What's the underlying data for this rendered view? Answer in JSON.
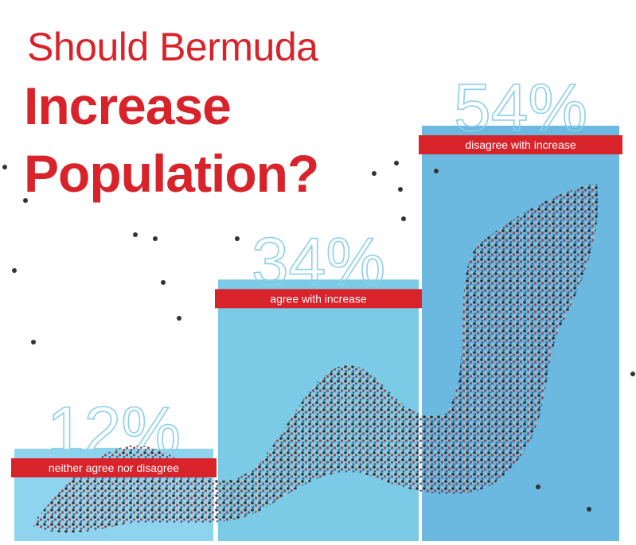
{
  "title": {
    "line1": "Should Bermuda",
    "line2": "Increase",
    "line3": "Population?"
  },
  "colors": {
    "title": "#d8232a",
    "band": "#d8232a",
    "bar_light": "#8fd4ee",
    "bar_mid": "#7ccbe6",
    "bar_dark": "#6bb9e0",
    "percent_text": "#8ccfe8"
  },
  "chart_data": {
    "type": "bar",
    "title": "Should Bermuda Increase Population?",
    "categories": [
      "neither agree nor disagree",
      "agree with increase",
      "disagree with increase"
    ],
    "values": [
      12,
      34,
      54
    ],
    "value_labels": [
      "12%",
      "34%",
      "54%"
    ],
    "unit": "%",
    "ylim": [
      0,
      54
    ],
    "grid": false,
    "legend": "none"
  }
}
